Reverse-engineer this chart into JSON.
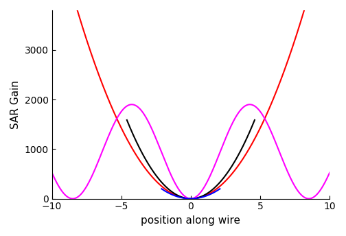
{
  "title": "",
  "xlabel": "position along wire",
  "ylabel": "SAR Gain",
  "xlim": [
    -10,
    10
  ],
  "ylim": [
    0,
    3800
  ],
  "yticks": [
    0,
    1000,
    2000,
    3000
  ],
  "xticks": [
    -10,
    -5,
    0,
    5,
    10
  ],
  "red": {
    "color": "#ff0000",
    "coeff": 57.0,
    "xmax": 10.0
  },
  "black": {
    "color": "#000000",
    "coeff": 75.0,
    "xmax": 4.6
  },
  "magenta": {
    "color": "#ff00ff",
    "amplitude": 1900.0,
    "half_period": 8.5,
    "xmax": 10.0
  },
  "blue": {
    "color": "#0000ff",
    "coeff": 45.0,
    "xmax": 2.1
  },
  "background_color": "#ffffff",
  "figsize": [
    5.04,
    3.44
  ],
  "dpi": 100
}
